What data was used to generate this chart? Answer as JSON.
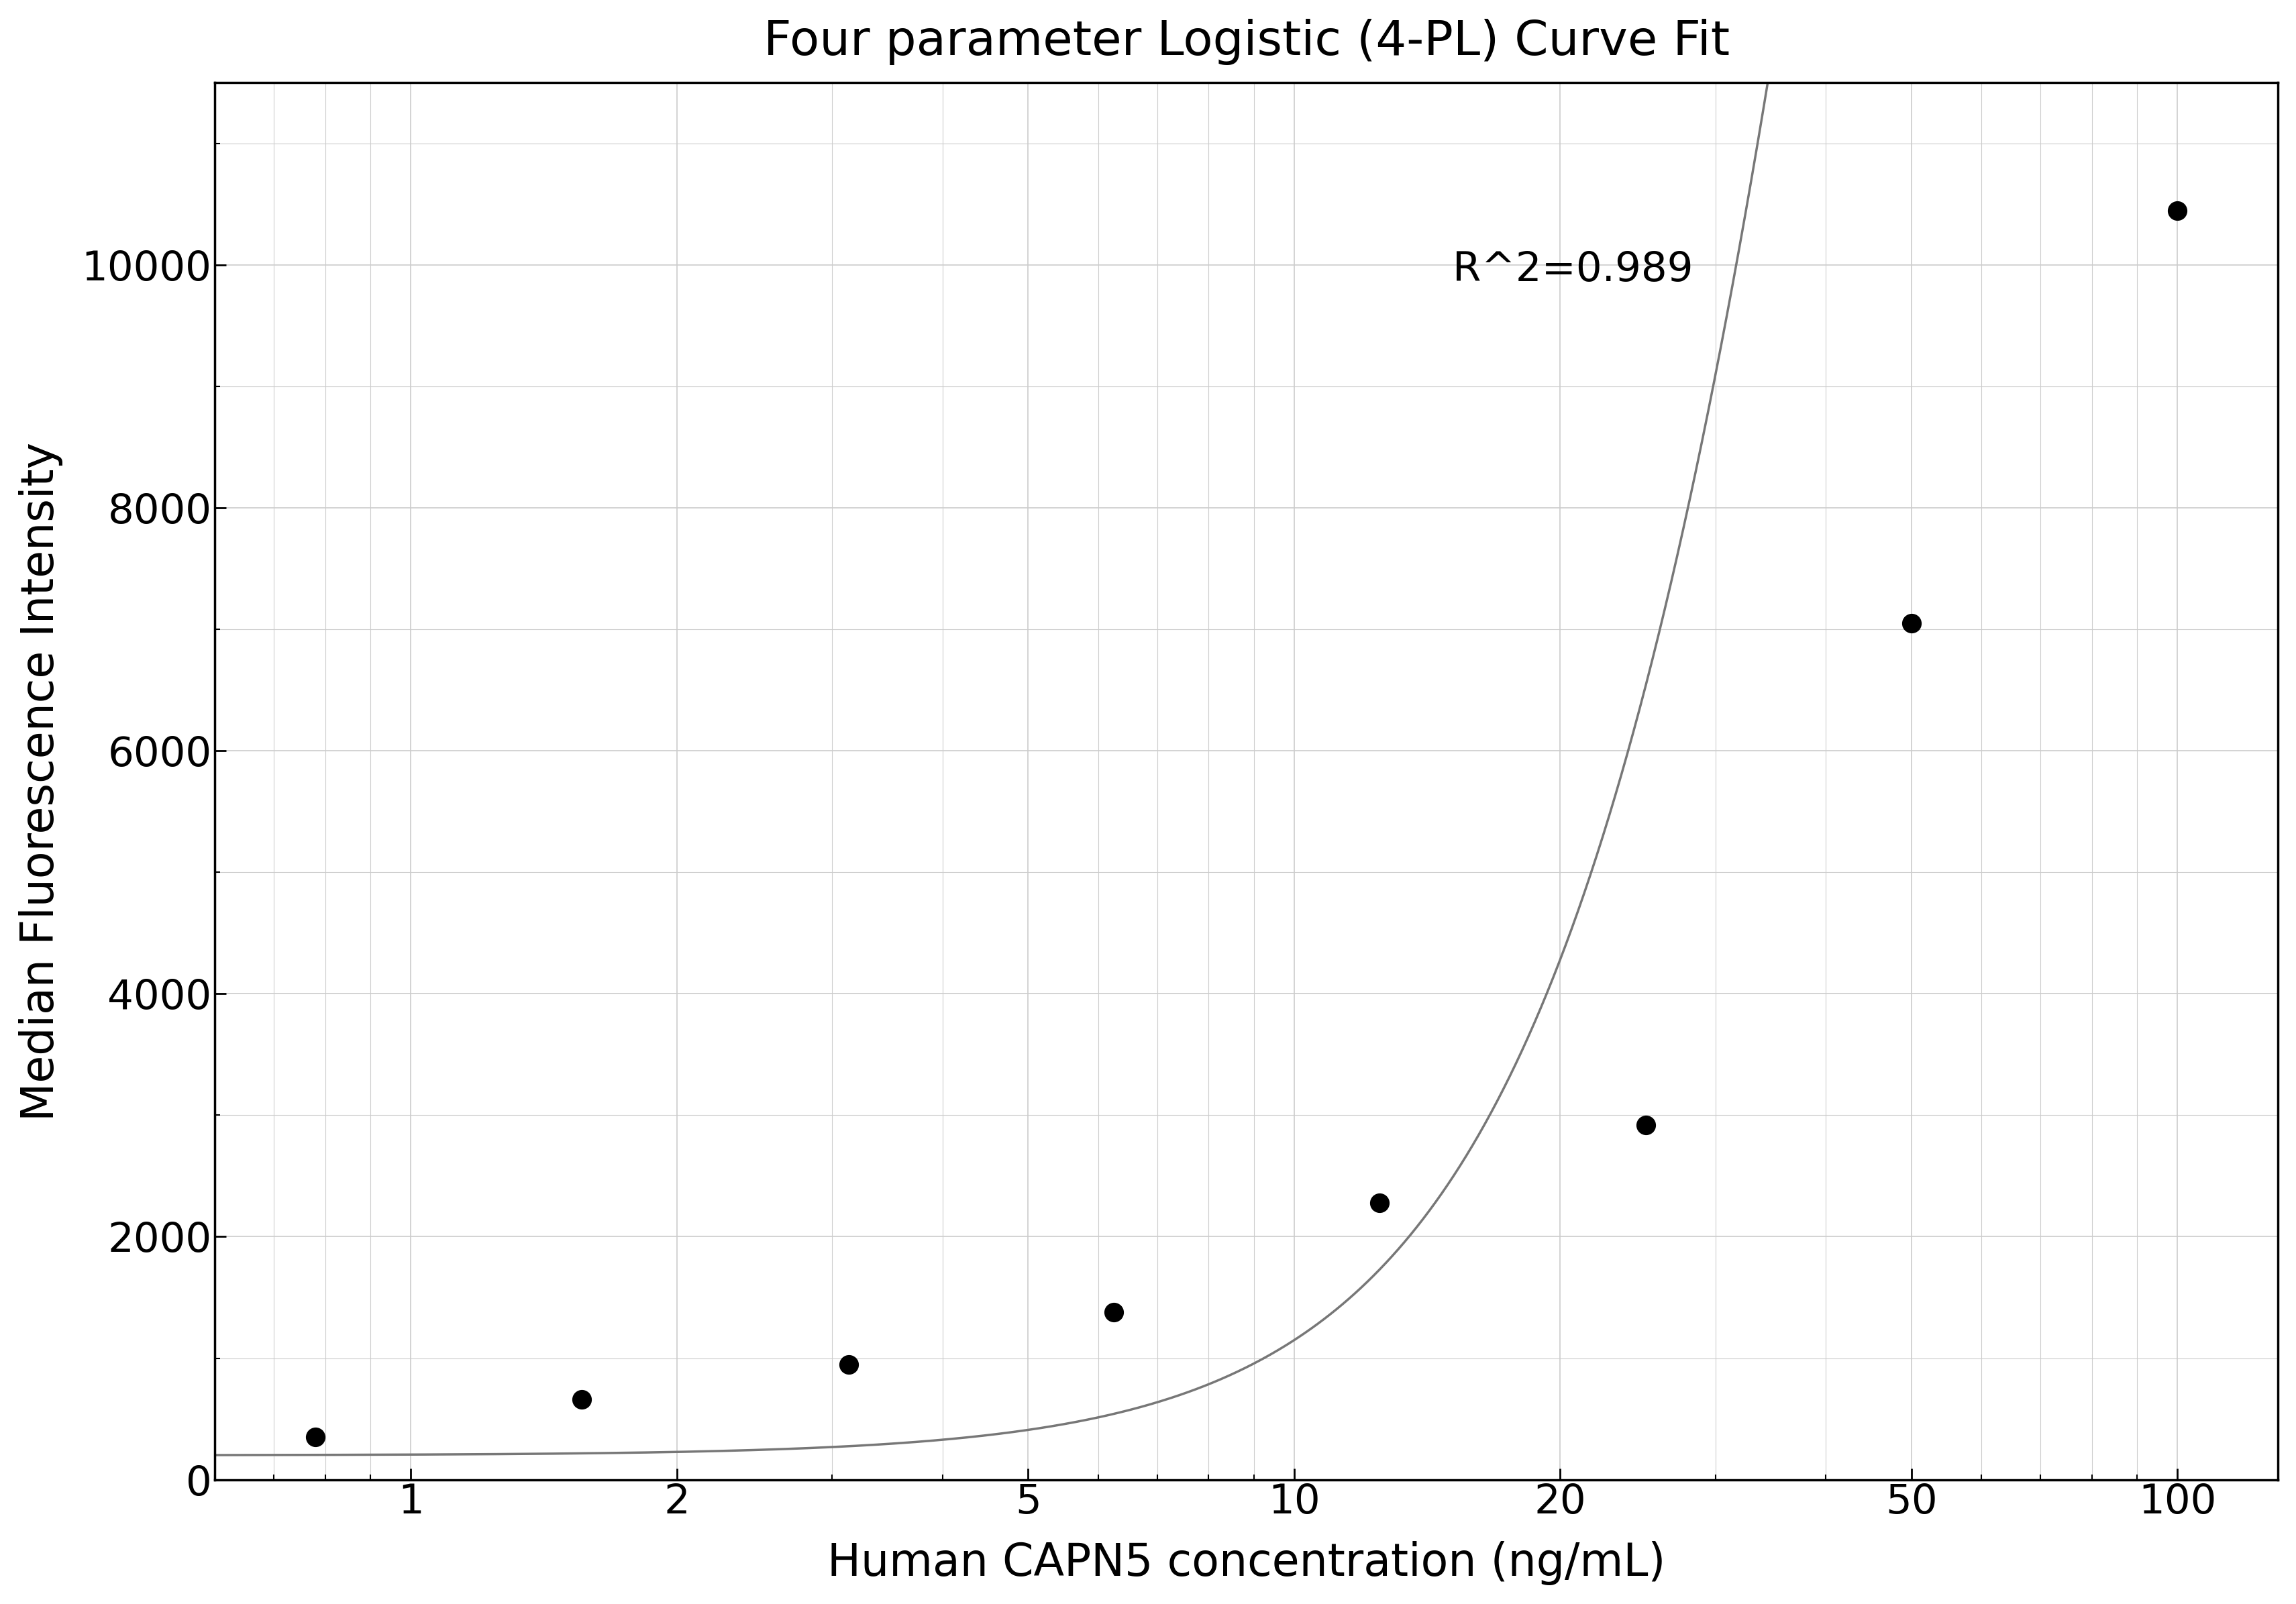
{
  "title": "Four parameter Logistic (4-PL) Curve Fit",
  "xlabel": "Human CAPN5 concentration (ng/mL)",
  "ylabel": "Median Fluorescence Intensity",
  "r_squared_text": "R^2=0.989",
  "scatter_x": [
    0.78,
    1.56,
    3.13,
    6.25,
    12.5,
    25,
    50,
    100
  ],
  "scatter_y": [
    350,
    660,
    950,
    1380,
    2280,
    2920,
    7050,
    10450
  ],
  "xscale": "log",
  "xlim": [
    0.6,
    130
  ],
  "ylim": [
    0,
    11500
  ],
  "xticks": [
    1,
    2,
    5,
    10,
    20,
    50,
    100
  ],
  "yticks": [
    0,
    2000,
    4000,
    6000,
    8000,
    10000
  ],
  "curve_color": "#777777",
  "scatter_color": "#000000",
  "grid_color": "#cccccc",
  "background_color": "#ffffff",
  "title_fontsize": 52,
  "label_fontsize": 48,
  "tick_fontsize": 44,
  "annotation_fontsize": 44,
  "4pl_params": {
    "A": 200,
    "B": 2.2,
    "C": 60,
    "D": 50000
  }
}
